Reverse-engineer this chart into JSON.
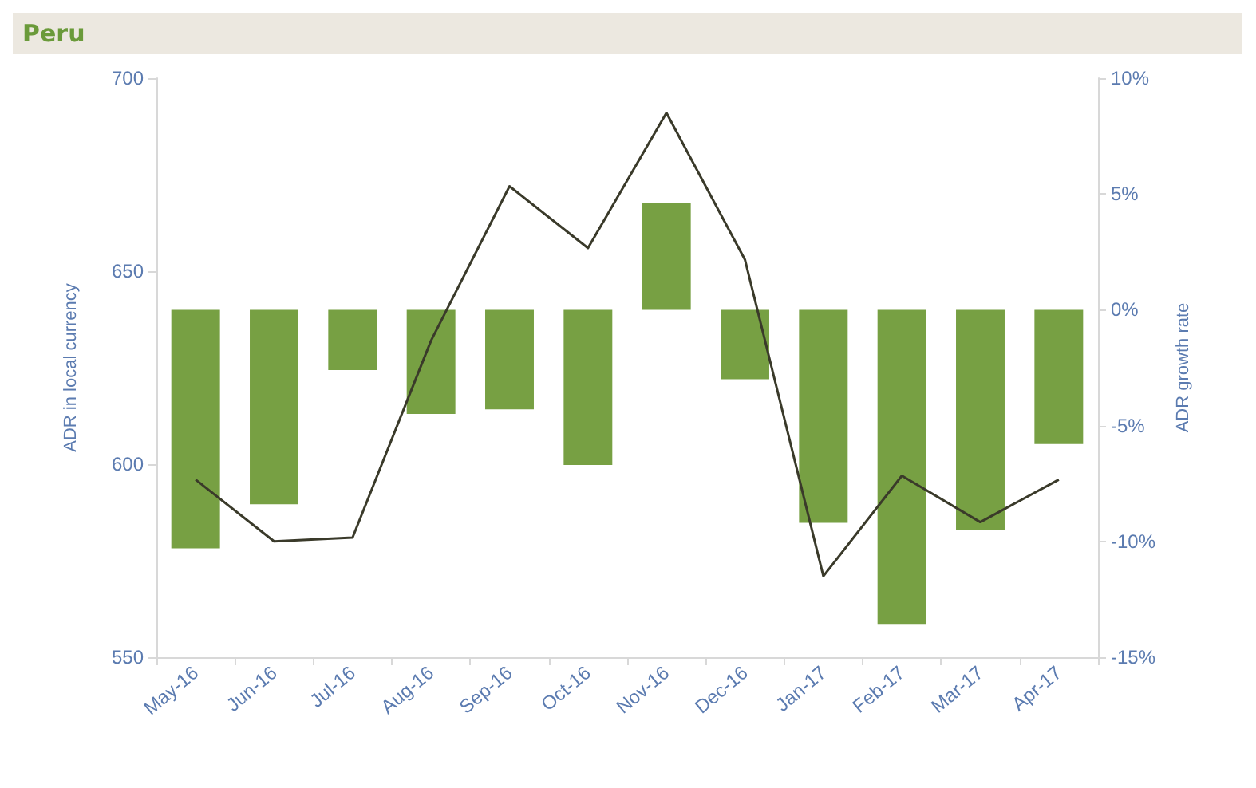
{
  "chart_data": {
    "type": "bar",
    "title": "Peru",
    "ylabel": "ADR in local currency",
    "y2label": "ADR growth rate",
    "categories": [
      "May-16",
      "Jun-16",
      "Jul-16",
      "Aug-16",
      "Sep-16",
      "Oct-16",
      "Nov-16",
      "Dec-16",
      "Jan-17",
      "Feb-17",
      "Mar-17",
      "Apr-17"
    ],
    "series": [
      {
        "axis": "y2",
        "color": "#77a043",
        "values": [
          -10.3,
          -8.4,
          -2.6,
          -4.5,
          -4.3,
          -6.7,
          4.6,
          -3.0,
          -9.2,
          -13.6,
          -9.5,
          -5.8
        ]
      },
      {
        "type": "line",
        "axis": "y",
        "color": "#3a3a2a",
        "values": [
          596,
          580,
          581,
          632,
          672,
          656,
          691,
          653,
          571,
          597,
          585,
          596
        ]
      }
    ],
    "ylim": [
      550,
      700
    ],
    "yticks": [
      550,
      600,
      650,
      700
    ],
    "y2lim": [
      -15,
      10
    ],
    "y2ticks": [
      {
        "value": -15,
        "label": "-15%"
      },
      {
        "value": -10,
        "label": "-10%"
      },
      {
        "value": -5,
        "label": "-5%"
      },
      {
        "value": 0,
        "label": "0%"
      },
      {
        "value": 5,
        "label": "5%"
      },
      {
        "value": 10,
        "label": "10%"
      }
    ],
    "grid": false,
    "marker": "none",
    "line_style": "solid"
  }
}
